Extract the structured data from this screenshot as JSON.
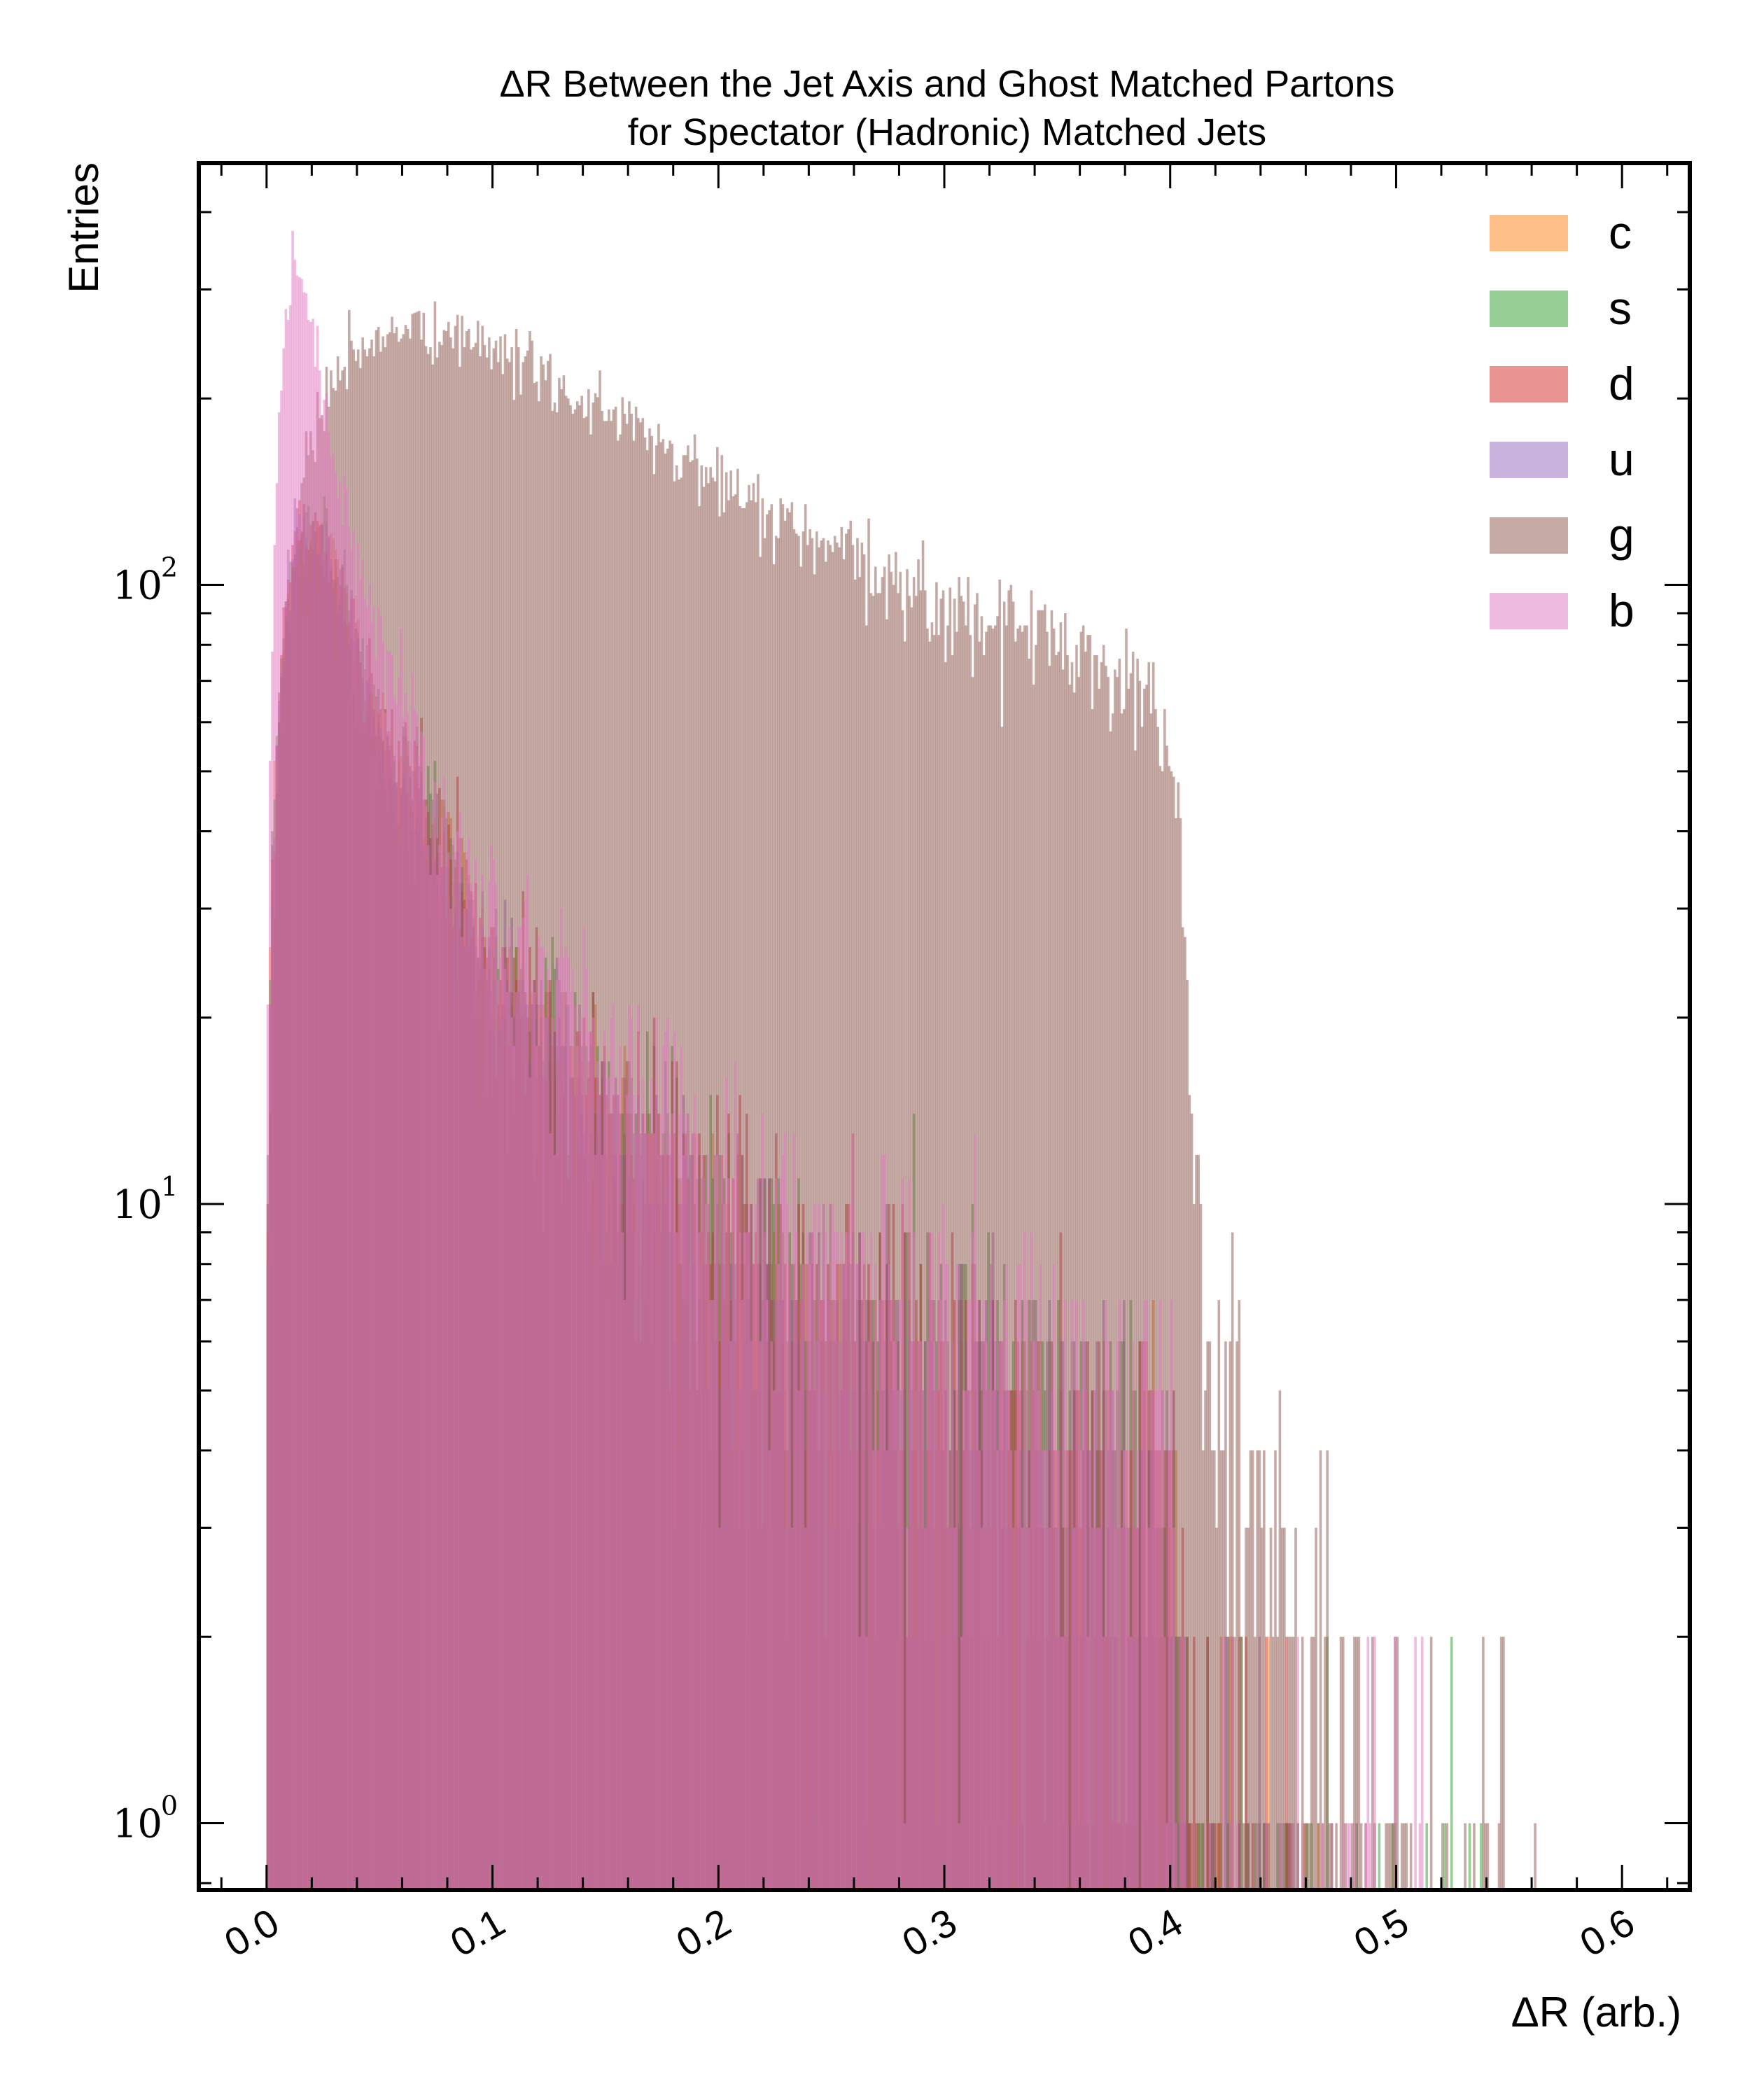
{
  "chart_data": {
    "type": "histogram",
    "title": [
      "ΔR Between the Jet Axis and Ghost Matched Partons",
      "for Spectator (Hadronic) Matched Jets"
    ],
    "xlabel": "ΔR (arb.)",
    "ylabel": "Entries",
    "xlim": [
      -0.03,
      0.63
    ],
    "ylim": [
      0.78,
      480
    ],
    "yscale": "log",
    "x_ticks": [
      "0.0",
      "0.1",
      "0.2",
      "0.3",
      "0.4",
      "0.5",
      "0.6"
    ],
    "x_tick_values": [
      0.0,
      0.1,
      0.2,
      0.3,
      0.4,
      0.5,
      0.6
    ],
    "y_ticks": [
      {
        "base": "10",
        "exp": "0",
        "value": 1
      },
      {
        "base": "10",
        "exp": "1",
        "value": 10
      },
      {
        "base": "10",
        "exp": "2",
        "value": 100
      }
    ],
    "legend_position": "top-right",
    "bin_width": 0.001,
    "series": [
      {
        "name": "c",
        "color": "#ff7f0e",
        "profile": [
          [
            0.0,
            4
          ],
          [
            0.003,
            40
          ],
          [
            0.012,
            115
          ],
          [
            0.025,
            118
          ],
          [
            0.05,
            55
          ],
          [
            0.1,
            22
          ],
          [
            0.15,
            12
          ],
          [
            0.2,
            7
          ],
          [
            0.25,
            5
          ],
          [
            0.3,
            4
          ],
          [
            0.35,
            3
          ],
          [
            0.4,
            2.5
          ],
          [
            0.41,
            1
          ],
          [
            0.47,
            0
          ]
        ]
      },
      {
        "name": "s",
        "color": "#2ca02c",
        "profile": [
          [
            0.0,
            4
          ],
          [
            0.003,
            40
          ],
          [
            0.012,
            115
          ],
          [
            0.025,
            120
          ],
          [
            0.05,
            55
          ],
          [
            0.1,
            23
          ],
          [
            0.15,
            14
          ],
          [
            0.2,
            9
          ],
          [
            0.25,
            7
          ],
          [
            0.3,
            6
          ],
          [
            0.35,
            4
          ],
          [
            0.4,
            3
          ],
          [
            0.41,
            1
          ],
          [
            0.57,
            0
          ]
        ]
      },
      {
        "name": "d",
        "color": "#d62728",
        "profile": [
          [
            0.0,
            4
          ],
          [
            0.003,
            40
          ],
          [
            0.012,
            118
          ],
          [
            0.025,
            122
          ],
          [
            0.05,
            57
          ],
          [
            0.1,
            24
          ],
          [
            0.15,
            14
          ],
          [
            0.2,
            9
          ],
          [
            0.25,
            7
          ],
          [
            0.3,
            5.5
          ],
          [
            0.35,
            4
          ],
          [
            0.4,
            3
          ],
          [
            0.41,
            1
          ],
          [
            0.47,
            0
          ]
        ]
      },
      {
        "name": "u",
        "color": "#9467bd",
        "profile": [
          [
            0.0,
            4
          ],
          [
            0.003,
            40
          ],
          [
            0.012,
            116
          ],
          [
            0.025,
            120
          ],
          [
            0.05,
            56
          ],
          [
            0.1,
            23
          ],
          [
            0.15,
            13
          ],
          [
            0.2,
            8
          ],
          [
            0.25,
            6
          ],
          [
            0.3,
            5
          ],
          [
            0.35,
            4
          ],
          [
            0.4,
            3
          ],
          [
            0.41,
            1
          ],
          [
            0.47,
            0
          ]
        ]
      },
      {
        "name": "g",
        "color": "#8c564b",
        "profile": [
          [
            0.0,
            5
          ],
          [
            0.003,
            40
          ],
          [
            0.01,
            100
          ],
          [
            0.02,
            170
          ],
          [
            0.03,
            220
          ],
          [
            0.05,
            250
          ],
          [
            0.07,
            260
          ],
          [
            0.1,
            240
          ],
          [
            0.15,
            190
          ],
          [
            0.2,
            145
          ],
          [
            0.25,
            112
          ],
          [
            0.3,
            92
          ],
          [
            0.35,
            82
          ],
          [
            0.385,
            70
          ],
          [
            0.4,
            55
          ],
          [
            0.405,
            35
          ],
          [
            0.408,
            20
          ],
          [
            0.41,
            9
          ],
          [
            0.42,
            5
          ],
          [
            0.45,
            2.2
          ],
          [
            0.47,
            1.5
          ],
          [
            0.5,
            1
          ],
          [
            0.57,
            0
          ]
        ]
      },
      {
        "name": "b",
        "color": "#e377c2",
        "profile": [
          [
            0.0,
            6
          ],
          [
            0.003,
            90
          ],
          [
            0.008,
            260
          ],
          [
            0.013,
            345
          ],
          [
            0.02,
            260
          ],
          [
            0.03,
            155
          ],
          [
            0.05,
            80
          ],
          [
            0.075,
            45
          ],
          [
            0.1,
            30
          ],
          [
            0.15,
            17
          ],
          [
            0.2,
            11
          ],
          [
            0.25,
            8
          ],
          [
            0.3,
            6
          ],
          [
            0.35,
            5
          ],
          [
            0.4,
            3.5
          ],
          [
            0.41,
            1
          ],
          [
            0.57,
            0
          ]
        ]
      }
    ]
  }
}
